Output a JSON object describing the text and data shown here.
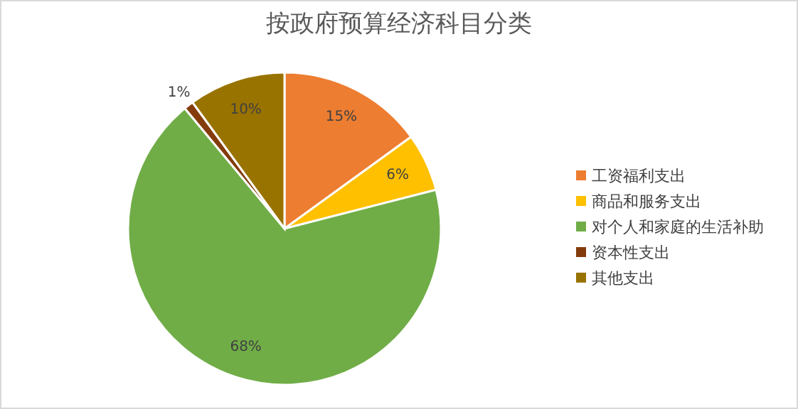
{
  "chart_data": {
    "type": "pie",
    "title": "按政府预算经济科目分类",
    "categories": [
      "工资福利支出",
      "商品和服务支出",
      "对个人和家庭的生活补助",
      "资本性支出",
      "其他支出"
    ],
    "values": [
      15,
      6,
      68,
      1,
      10
    ],
    "colors": [
      "#ed7d31",
      "#ffc000",
      "#70ad47",
      "#843c0c",
      "#997300"
    ],
    "value_labels": [
      "15%",
      "6%",
      "68%",
      "1%",
      "10%"
    ],
    "legend": "right"
  }
}
